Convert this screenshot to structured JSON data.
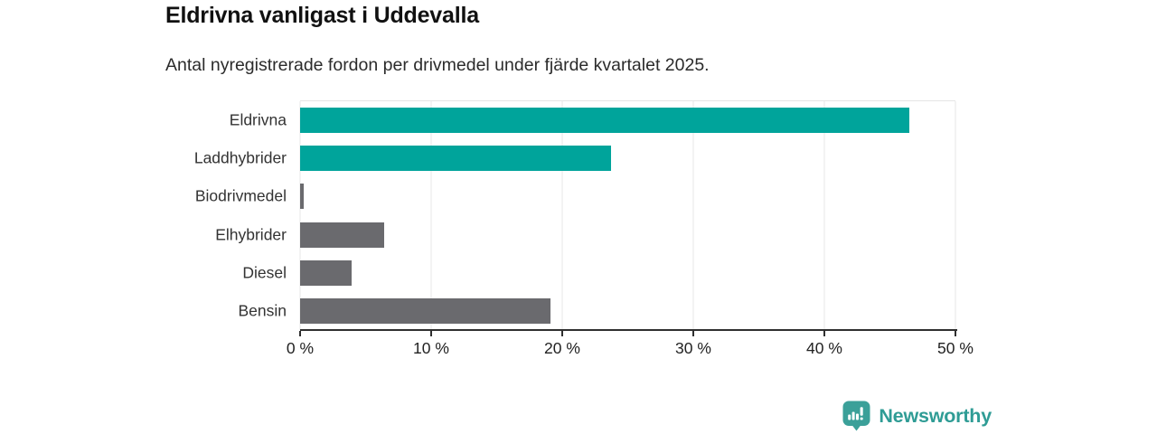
{
  "chart_data": {
    "type": "bar",
    "orientation": "horizontal",
    "title": "Eldrivna vanligast i Uddevalla",
    "subtitle": "Antal nyregistrerade fordon per drivmedel under fjärde kvartalet 2025.",
    "categories": [
      "Eldrivna",
      "Laddhybrider",
      "Biodrivmedel",
      "Elhybrider",
      "Diesel",
      "Bensin"
    ],
    "values": [
      46.5,
      23.7,
      0.3,
      6.4,
      3.9,
      19.1
    ],
    "unit": "%",
    "bar_colors": [
      "#00a49b",
      "#00a49b",
      "#6a6a6e",
      "#6a6a6e",
      "#6a6a6e",
      "#6a6a6e"
    ],
    "xlim": [
      0,
      50
    ],
    "x_ticks": [
      0,
      10,
      20,
      30,
      40,
      50
    ],
    "x_tick_labels": [
      "0 %",
      "10 %",
      "20 %",
      "30 %",
      "40 %",
      "50 %"
    ],
    "xlabel": "",
    "ylabel": "",
    "grid": "vertical-light",
    "legend": "none"
  },
  "branding": {
    "name": "Newsworthy",
    "logo_icon": "newsworthy-pin-chart-icon",
    "badge_color": "#3ba099",
    "text_color": "#2f9c95"
  },
  "colors": {
    "bar_teal": "#00a49b",
    "bar_gray": "#6a6a6e",
    "gridline": "#e7e7e7",
    "axis_line": "#2f2f2f",
    "title_text": "#111111",
    "subtitle_text": "#2b2b2b",
    "label_text": "#333333"
  }
}
